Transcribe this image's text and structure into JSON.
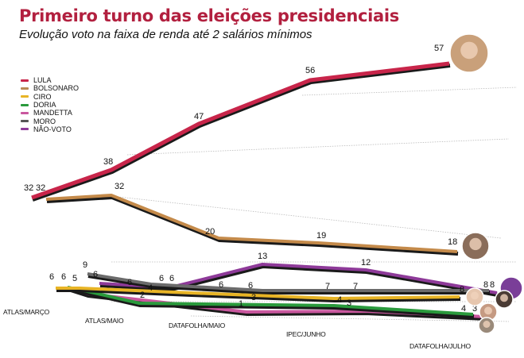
{
  "header": {
    "title": "Primeiro turno das eleições presidenciais",
    "subtitle": "Evolução voto na faixa de renda até 2 salários mínimos"
  },
  "chart_data": {
    "type": "line",
    "title": "Primeiro turno das eleições presidenciais",
    "subtitle": "Evolução voto na faixa de renda até 2 salários mínimos",
    "xlabel": "",
    "ylabel": "",
    "unit": "%",
    "grid": false,
    "legend_position": "top-left",
    "categories": [
      "ATLAS/MARÇO",
      "ATLAS/MAIO",
      "DATAFOLHA/MAIO",
      "IPEC/JUNHO",
      "DATAFOLHA/JULHO"
    ],
    "series": [
      {
        "name": "LULA",
        "color": "#c8254a",
        "values": [
          32,
          38,
          47,
          56,
          57
        ],
        "labels": [
          "32",
          "38",
          "47",
          "56",
          "57"
        ]
      },
      {
        "name": "BOLSONARO",
        "color": "#c48a4a",
        "values": [
          32,
          32,
          20,
          19,
          18
        ],
        "labels": [
          "32",
          "32",
          "20",
          "19",
          "18"
        ]
      },
      {
        "name": "CIRO",
        "color": "#e8b425",
        "values": [
          6,
          6,
          3,
          4,
          4
        ],
        "labels": [
          "6",
          "6",
          "3",
          "4",
          "4"
        ]
      },
      {
        "name": "DORIA",
        "color": "#2a9a3c",
        "values": [
          6,
          5,
          1,
          3,
          3
        ],
        "labels": [
          "6",
          "5",
          "1",
          "3",
          "3"
        ]
      },
      {
        "name": "MANDETTA",
        "color": "#c9579e",
        "values": [
          6,
          2,
          1,
          3,
          3
        ],
        "labels": [
          "",
          "2",
          "1",
          "3",
          "3"
        ]
      },
      {
        "name": "MORO",
        "color": "#6b6b6b",
        "values": [
          9,
          6,
          6,
          7,
          8
        ],
        "labels": [
          "9",
          "6",
          "6",
          "7",
          "8"
        ]
      },
      {
        "name": "NÃO-VOTO",
        "color": "#8e3a99",
        "values": [
          6,
          6,
          13,
          12,
          8
        ],
        "labels": [
          "6",
          "6",
          "13",
          "12",
          "8"
        ]
      }
    ],
    "extra_point_labels": [
      "6",
      "6",
      "4",
      "6",
      "7",
      "8"
    ]
  },
  "legend": {
    "items": [
      {
        "label": "LULA",
        "color": "#c8254a"
      },
      {
        "label": "BOLSONARO",
        "color": "#b98a55"
      },
      {
        "label": "CIRO",
        "color": "#e8b425"
      },
      {
        "label": "DORIA",
        "color": "#2a9a3c"
      },
      {
        "label": "MANDETTA",
        "color": "#c9579e"
      },
      {
        "label": "MORO",
        "color": "#555555"
      },
      {
        "label": "NÃO-VOTO",
        "color": "#8e3a99"
      }
    ]
  },
  "avatars": [
    "lula-photo",
    "bolsonaro-photo",
    "ciro-photo",
    "moro-photo",
    "doria-photo",
    "mandetta-photo"
  ]
}
